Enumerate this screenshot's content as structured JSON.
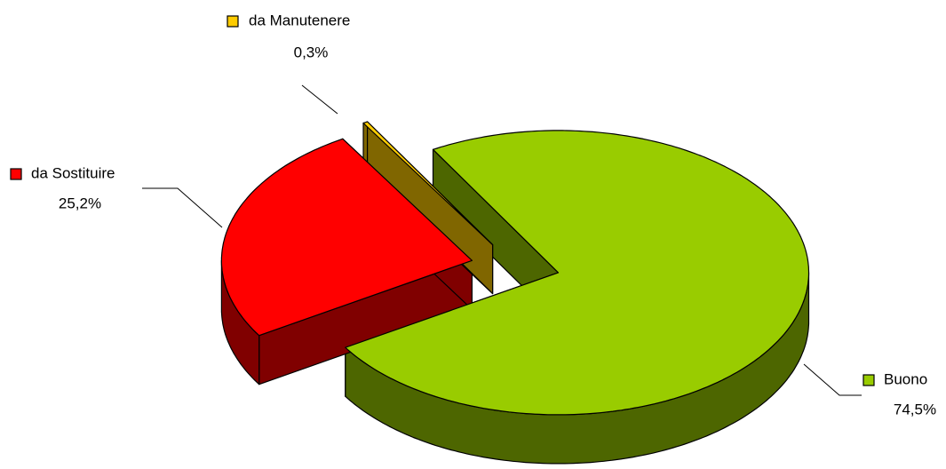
{
  "chart_data": {
    "type": "pie",
    "categories": [
      "Buono",
      "da Sostituire",
      "da Manutenere"
    ],
    "values": [
      74.5,
      25.2,
      0.3
    ],
    "value_labels": [
      "74,5%",
      "25,2%",
      "0,3%"
    ],
    "colors": [
      "#99cc00",
      "#ff0000",
      "#ffcc00"
    ]
  }
}
